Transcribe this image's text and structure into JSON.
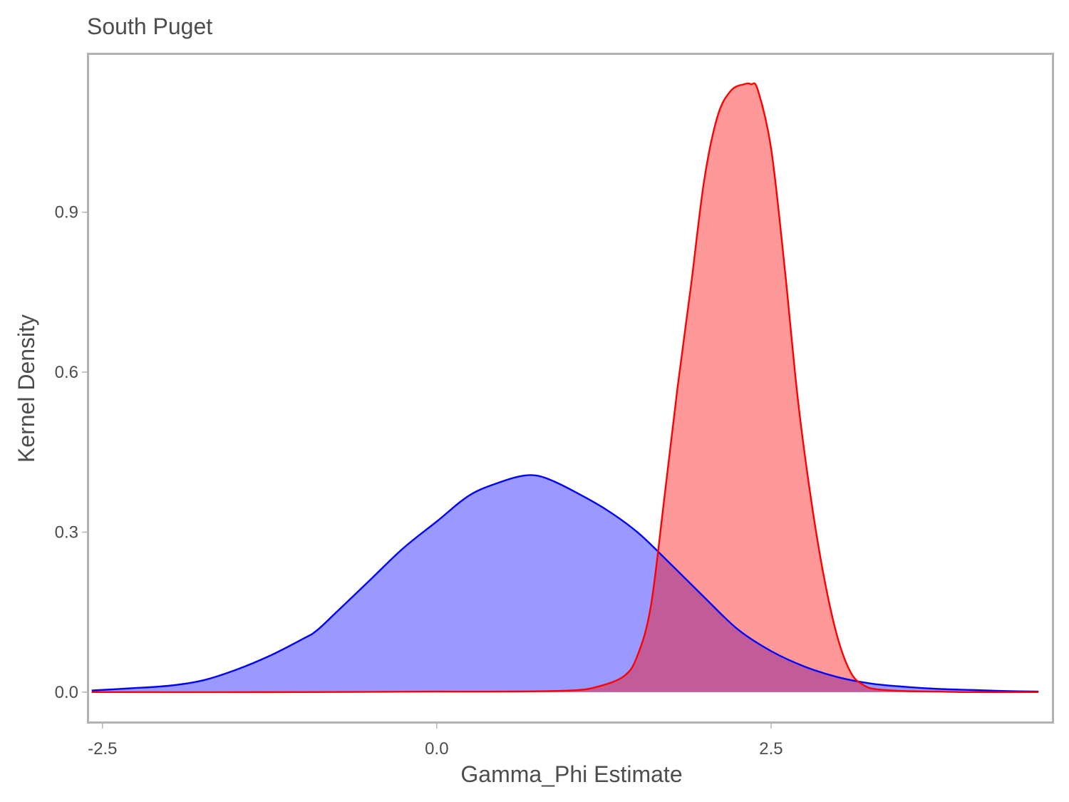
{
  "chart_data": {
    "type": "area",
    "title": "South Puget",
    "xlabel": "Gamma_Phi Estimate",
    "ylabel": "Kernel Density",
    "xlim": [
      -2.6,
      4.6
    ],
    "ylim": [
      -0.055,
      1.195
    ],
    "x_ticks": [
      -2.5,
      0.0,
      2.5
    ],
    "x_tick_labels": [
      "-2.5",
      "0.0",
      "2.5"
    ],
    "y_ticks": [
      0.0,
      0.3,
      0.6,
      0.9
    ],
    "y_tick_labels": [
      "0.0",
      "0.3",
      "0.6",
      "0.9"
    ],
    "grid": false,
    "legend": "none",
    "series": [
      {
        "color": "#0000ff",
        "fill": "#9999ff",
        "x": [
          -2.58,
          -2.3,
          -2.0,
          -1.75,
          -1.5,
          -1.25,
          -1.0,
          -0.9,
          -0.75,
          -0.5,
          -0.25,
          0.0,
          0.25,
          0.5,
          0.65,
          0.75,
          0.85,
          1.0,
          1.25,
          1.5,
          1.75,
          2.0,
          2.25,
          2.5,
          2.75,
          3.0,
          3.25,
          3.5,
          3.75,
          4.0,
          4.25,
          4.5
        ],
        "y": [
          0.003,
          0.007,
          0.012,
          0.022,
          0.042,
          0.068,
          0.1,
          0.115,
          0.15,
          0.21,
          0.27,
          0.32,
          0.37,
          0.396,
          0.406,
          0.406,
          0.398,
          0.38,
          0.345,
          0.3,
          0.24,
          0.178,
          0.118,
          0.077,
          0.048,
          0.028,
          0.016,
          0.01,
          0.006,
          0.004,
          0.002,
          0.001
        ]
      },
      {
        "color": "#ff0000",
        "fill": "#ff9999",
        "x": [
          -2.58,
          -1.0,
          0.0,
          0.5,
          1.0,
          1.2,
          1.4,
          1.5,
          1.6,
          1.7,
          1.8,
          1.9,
          2.0,
          2.1,
          2.2,
          2.3,
          2.35,
          2.4,
          2.5,
          2.6,
          2.7,
          2.8,
          2.9,
          3.0,
          3.1,
          3.2,
          3.3,
          3.5,
          3.75,
          4.0,
          4.5
        ],
        "y": [
          0.0,
          0.0,
          0.001,
          0.001,
          0.003,
          0.01,
          0.03,
          0.068,
          0.16,
          0.36,
          0.57,
          0.76,
          0.96,
          1.08,
          1.128,
          1.14,
          1.14,
          1.13,
          1.02,
          0.8,
          0.55,
          0.36,
          0.21,
          0.1,
          0.035,
          0.012,
          0.005,
          0.002,
          0.001,
          0.0,
          0.0
        ]
      }
    ]
  }
}
